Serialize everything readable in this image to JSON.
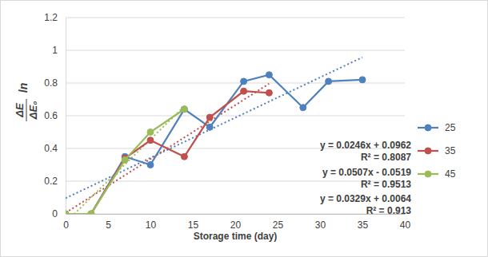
{
  "chart_data": {
    "type": "line",
    "x_label": "Storage time (day)",
    "y_label": {
      "prefix": "ln",
      "numerator": "ΔE",
      "denominator": "ΔE₀"
    },
    "xlim": [
      0,
      40
    ],
    "xticks": [
      0,
      5,
      10,
      15,
      20,
      25,
      30,
      35,
      40
    ],
    "ylim": [
      0,
      1.2
    ],
    "yticks": [
      0,
      0.2,
      0.4,
      0.6,
      0.8,
      1,
      1.2
    ],
    "grid": true,
    "legend": "right",
    "marker": "circle",
    "series": [
      {
        "name": "25",
        "color": "#4f81bd",
        "line_style": "solid",
        "x": [
          0,
          3,
          7,
          10,
          14,
          17,
          21,
          24,
          28,
          31,
          35
        ],
        "values": [
          0,
          0,
          0.35,
          0.3,
          0.64,
          0.53,
          0.81,
          0.85,
          0.65,
          0.81,
          0.82
        ],
        "trendline": {
          "line_style": "dotted",
          "x": [
            0,
            35
          ],
          "values": [
            0.0962,
            0.957
          ]
        }
      },
      {
        "name": "35",
        "color": "#c0504d",
        "line_style": "solid",
        "x": [
          0,
          3,
          7,
          10,
          14,
          17,
          21,
          24
        ],
        "values": [
          0,
          0,
          0.34,
          0.45,
          0.35,
          0.59,
          0.75,
          0.74
        ],
        "trendline": {
          "line_style": "dotted",
          "x": [
            0,
            24
          ],
          "values": [
            0.0064,
            0.796
          ]
        }
      },
      {
        "name": "45",
        "color": "#9bbb59",
        "line_style": "solid",
        "x": [
          0,
          3,
          7,
          10,
          14
        ],
        "values": [
          0,
          0,
          0.33,
          0.5,
          0.64
        ],
        "trendline": {
          "line_style": "dotted",
          "x": [
            0,
            14
          ],
          "values": [
            -0.0519,
            0.658
          ]
        }
      }
    ],
    "annotations": [
      "y = 0.0246x + 0.0962",
      "R² = 0.8087",
      "y = 0.0507x - 0.0519",
      "R² = 0.9513",
      "y = 0.0329x + 0.0064",
      "R² = 0.913"
    ]
  }
}
